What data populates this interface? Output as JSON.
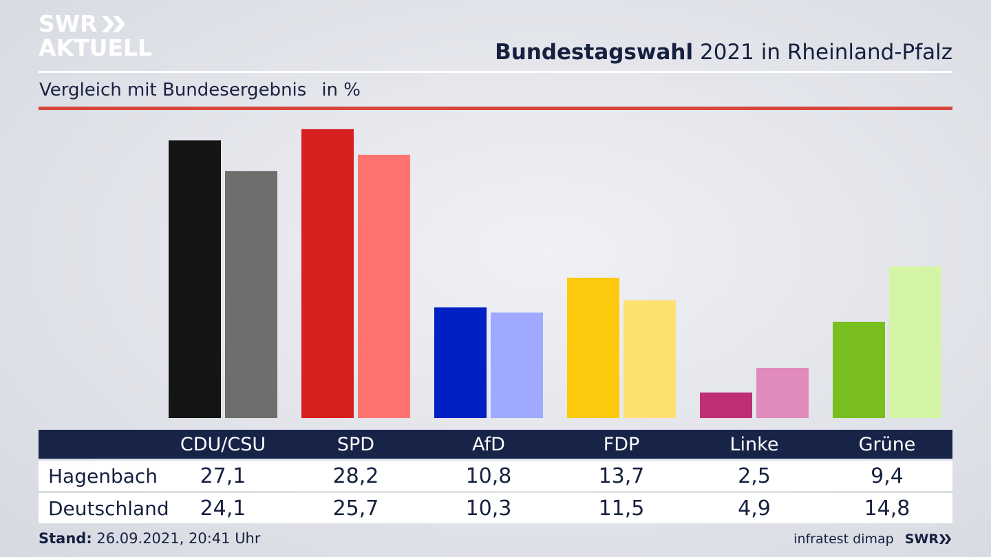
{
  "brand": {
    "logo_line1": "SWR",
    "logo_line2": "AKTUELL",
    "footer_logo": "SWR"
  },
  "header": {
    "title_bold": "Bundestagswahl",
    "title_rest": "2021 in Rheinland-Pfalz",
    "subtitle": "Vergleich mit Bundesergebnis",
    "unit": "in %"
  },
  "footer": {
    "stand_label": "Stand:",
    "stand_value": "26.09.2021, 20:41 Uhr",
    "source": "infratest dimap"
  },
  "colors": {
    "accent_red": "#d6463c",
    "table_header": "#182348"
  },
  "chart_data": {
    "type": "bar",
    "title": "Bundestagswahl 2021 in Rheinland-Pfalz",
    "subtitle": "Vergleich mit Bundesergebnis",
    "unit": "in %",
    "categories": [
      "CDU/CSU",
      "SPD",
      "AfD",
      "FDP",
      "Linke",
      "Grüne"
    ],
    "series": [
      {
        "name": "Hagenbach",
        "values": [
          27.1,
          28.2,
          10.8,
          13.7,
          2.5,
          9.4
        ],
        "display": [
          "27,1",
          "28,2",
          "10,8",
          "13,7",
          "2,5",
          "9,4"
        ]
      },
      {
        "name": "Deutschland",
        "values": [
          24.1,
          25.7,
          10.3,
          11.5,
          4.9,
          14.8
        ],
        "display": [
          "24,1",
          "25,7",
          "10,3",
          "11,5",
          "4,9",
          "14,8"
        ]
      }
    ],
    "colors": [
      [
        "#141414",
        "#6f6e6c"
      ],
      [
        "#d71f1f",
        "#ff736e"
      ],
      [
        "#0020c4",
        "#9ea9ff"
      ],
      [
        "#fdc90d",
        "#fde070"
      ],
      [
        "#be2f74",
        "#e08bbb"
      ],
      [
        "#79be1f",
        "#d5f5a6"
      ]
    ],
    "grid": false,
    "legend": "table-below"
  }
}
